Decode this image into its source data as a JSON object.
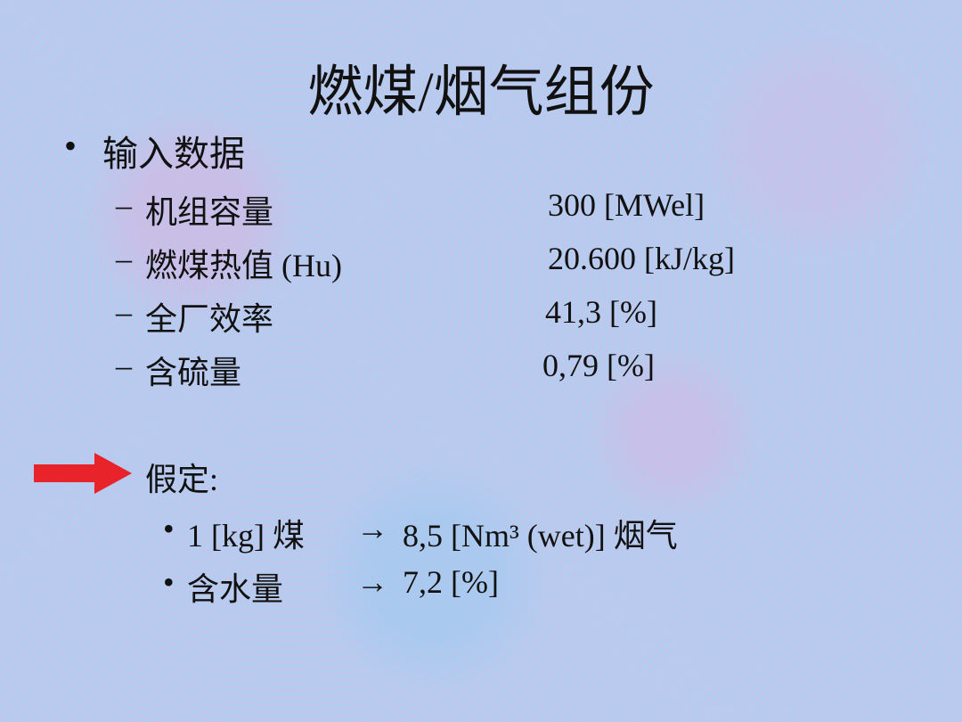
{
  "slide": {
    "title": "燃煤/烟气组份",
    "bullet": {
      "marker": "•",
      "label": "输入数据",
      "items": [
        {
          "marker": "–",
          "label": "机组容量",
          "value": "300 [MWel]"
        },
        {
          "marker": "–",
          "label": "燃煤热值 (Hu)",
          "value": "20.600 [kJ/kg]"
        },
        {
          "marker": "–",
          "label": "全厂效率",
          "value": "41,3 [%]"
        },
        {
          "marker": "–",
          "label": "含硫量",
          "value": "0,79 [%]"
        }
      ]
    },
    "assumption": {
      "icon": "red-arrow-right",
      "arrow_color": "#e8242a",
      "label": "假定:",
      "items": [
        {
          "marker": "•",
          "label": "1 [kg] 煤",
          "arrow": "→",
          "value": "8,5 [Nm³ (wet)] 烟气"
        },
        {
          "marker": "•",
          "label": "含水量",
          "arrow": "→",
          "value": "7,2 [%]"
        }
      ]
    }
  }
}
